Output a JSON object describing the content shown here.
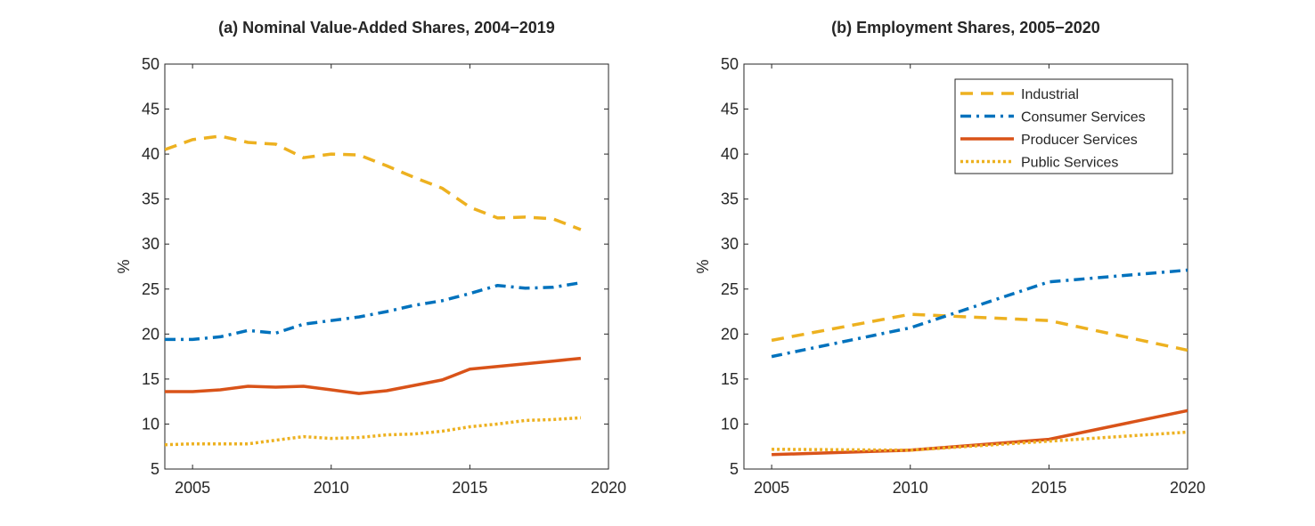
{
  "chart_data": [
    {
      "type": "line",
      "title": "(a) Nominal Value-Added Shares, 2004−2019",
      "xlabel": "",
      "ylabel": "%",
      "xlim": [
        2004,
        2020
      ],
      "ylim": [
        5,
        50
      ],
      "xticks": [
        2005,
        2010,
        2015,
        2020
      ],
      "yticks": [
        5,
        10,
        15,
        20,
        25,
        30,
        35,
        40,
        45,
        50
      ],
      "grid": false,
      "legend": "none",
      "x": [
        2004,
        2005,
        2006,
        2007,
        2008,
        2009,
        2010,
        2011,
        2012,
        2013,
        2014,
        2015,
        2016,
        2017,
        2018,
        2019
      ],
      "series": [
        {
          "key": "industrial",
          "color": "#EDB120",
          "style": "dashed",
          "values": [
            40.5,
            41.6,
            42.0,
            41.3,
            41.1,
            39.6,
            40.0,
            39.9,
            38.7,
            37.4,
            36.2,
            34.1,
            32.9,
            33.0,
            32.8,
            31.6
          ]
        },
        {
          "key": "consumer",
          "color": "#0072BD",
          "style": "dashdot",
          "values": [
            19.4,
            19.4,
            19.7,
            20.4,
            20.1,
            21.1,
            21.5,
            21.9,
            22.5,
            23.2,
            23.7,
            24.5,
            25.4,
            25.1,
            25.2,
            25.7
          ]
        },
        {
          "key": "producer",
          "color": "#D95319",
          "style": "solid",
          "values": [
            13.6,
            13.6,
            13.8,
            14.2,
            14.1,
            14.2,
            13.8,
            13.4,
            13.7,
            14.3,
            14.9,
            16.1,
            16.4,
            16.7,
            17.0,
            17.3
          ]
        },
        {
          "key": "public",
          "color": "#EDB120",
          "style": "dotted",
          "values": [
            7.7,
            7.8,
            7.8,
            7.8,
            8.2,
            8.6,
            8.4,
            8.5,
            8.8,
            8.9,
            9.2,
            9.7,
            10.0,
            10.4,
            10.5,
            10.7
          ]
        }
      ]
    },
    {
      "type": "line",
      "title": "(b) Employment Shares, 2005−2020",
      "xlabel": "",
      "ylabel": "%",
      "xlim": [
        2004,
        2020
      ],
      "ylim": [
        5,
        50
      ],
      "xticks": [
        2005,
        2010,
        2015,
        2020
      ],
      "yticks": [
        5,
        10,
        15,
        20,
        25,
        30,
        35,
        40,
        45,
        50
      ],
      "grid": false,
      "legend": "top-right",
      "x": [
        2005,
        2010,
        2015,
        2020
      ],
      "series": [
        {
          "key": "industrial",
          "name": "Industrial",
          "color": "#EDB120",
          "style": "dashed",
          "values": [
            19.3,
            22.2,
            21.5,
            18.2
          ]
        },
        {
          "key": "consumer",
          "name": "Consumer Services",
          "color": "#0072BD",
          "style": "dashdot",
          "values": [
            17.5,
            20.7,
            25.8,
            27.1
          ]
        },
        {
          "key": "producer",
          "name": "Producer Services",
          "color": "#D95319",
          "style": "solid",
          "values": [
            6.6,
            7.1,
            8.3,
            11.5
          ]
        },
        {
          "key": "public",
          "name": "Public Services",
          "color": "#EDB120",
          "style": "dotted",
          "values": [
            7.2,
            7.1,
            8.1,
            9.1
          ]
        }
      ]
    }
  ]
}
